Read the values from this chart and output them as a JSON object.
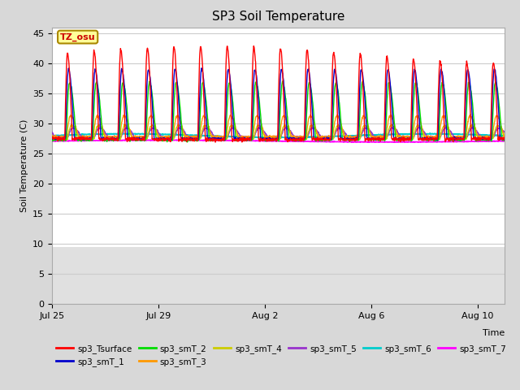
{
  "title": "SP3 Soil Temperature",
  "ylabel": "Soil Temperature (C)",
  "xlabel": "Time",
  "ylim": [
    0,
    46
  ],
  "yticks": [
    0,
    5,
    10,
    15,
    20,
    25,
    30,
    35,
    40,
    45
  ],
  "xtick_positions": [
    0,
    4,
    8,
    12,
    16
  ],
  "xtick_labels": [
    "Jul 25",
    "Jul 29",
    "Aug 2",
    "Aug 6",
    "Aug 10"
  ],
  "annotation_text": "TZ_osu",
  "annotation_bg": "#ffff99",
  "annotation_border": "#aa8800",
  "series_colors": {
    "sp3_Tsurface": "#ff0000",
    "sp3_smT_1": "#0000cc",
    "sp3_smT_2": "#00dd00",
    "sp3_smT_3": "#ff9900",
    "sp3_smT_4": "#cccc00",
    "sp3_smT_5": "#9933cc",
    "sp3_smT_6": "#00cccc",
    "sp3_smT_7": "#ff00ff"
  },
  "fig_bg_color": "#d8d8d8",
  "plot_bg_color": "#ffffff",
  "grid_color": "#cccccc",
  "n_days": 17,
  "pts_per_day": 96
}
